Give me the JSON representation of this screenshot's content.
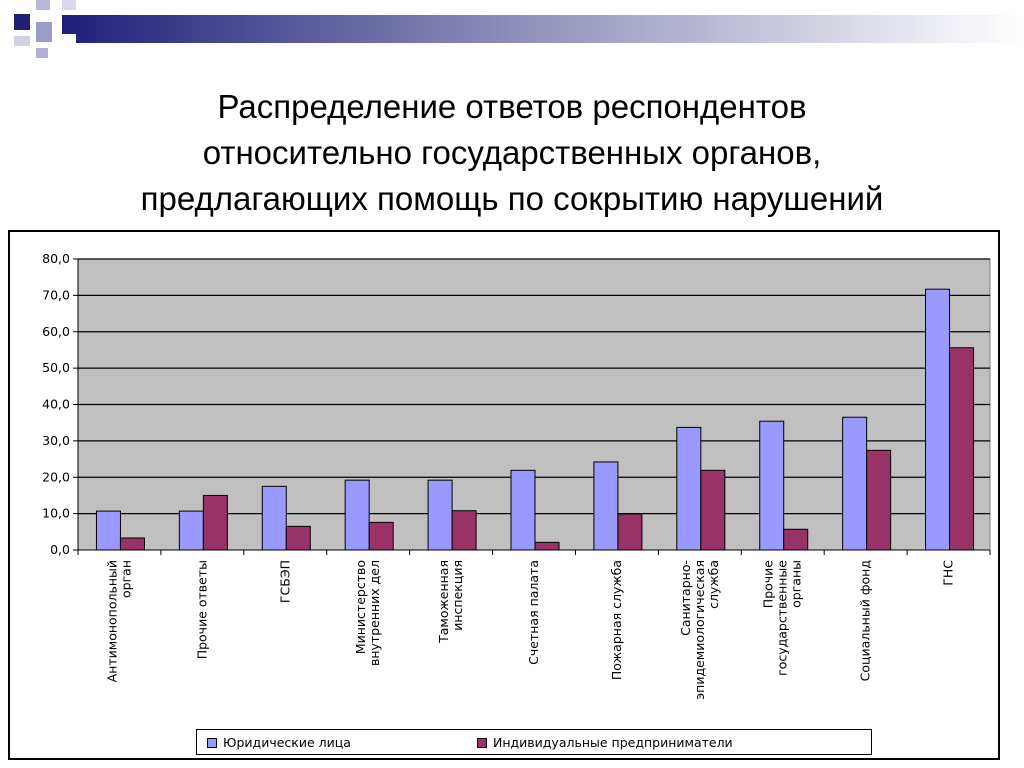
{
  "title": {
    "lines": [
      "Распределение ответов респондентов",
      "относительно государственных органов,",
      "предлагающих помощь по сокрытию нарушений"
    ]
  },
  "colors": {
    "series1": "#9999ff",
    "series2": "#993366",
    "plot_bg": "#c0c0c0",
    "deco_navy": "#1f1f7a"
  },
  "chart_data": {
    "type": "bar",
    "categories": [
      "Антимонопольный орган",
      "Прочие ответы",
      "ГСБЭП",
      "Министерство внутренних дел",
      "Таможенная инспекция",
      "Счетная палата",
      "Пожарная служба",
      "Санитарно- эпидемиологическая служба",
      "Прочие государственные органы",
      "Социальный фонд",
      "ГНС"
    ],
    "category_label_lines": [
      [
        "Антимонопольный",
        "орган"
      ],
      [
        "Прочие ответы"
      ],
      [
        "ГСБЭП"
      ],
      [
        "Министерство",
        "внутренних дел"
      ],
      [
        "Таможенная",
        "инспекция"
      ],
      [
        "Счетная палата"
      ],
      [
        "Пожарная служба"
      ],
      [
        "Санитарно-",
        "эпидемиологическая",
        "служба"
      ],
      [
        "Прочие",
        "государственные",
        "органы"
      ],
      [
        "Социальный фонд"
      ],
      [
        "ГНС"
      ]
    ],
    "series": [
      {
        "name": "Юридические лица",
        "values": [
          10.7,
          10.7,
          17.5,
          19.2,
          19.2,
          21.9,
          24.2,
          33.7,
          35.4,
          36.5,
          71.7
        ]
      },
      {
        "name": "Индивидуальные предприниматели",
        "values": [
          3.3,
          15.0,
          6.5,
          7.6,
          10.8,
          2.1,
          9.9,
          21.9,
          5.7,
          27.4,
          55.6
        ]
      }
    ],
    "yticks": [
      "0,0",
      "10,0",
      "20,0",
      "30,0",
      "40,0",
      "50,0",
      "60,0",
      "70,0",
      "80,0"
    ],
    "ylim": [
      0,
      80
    ],
    "grid": true,
    "legend_position": "bottom"
  }
}
